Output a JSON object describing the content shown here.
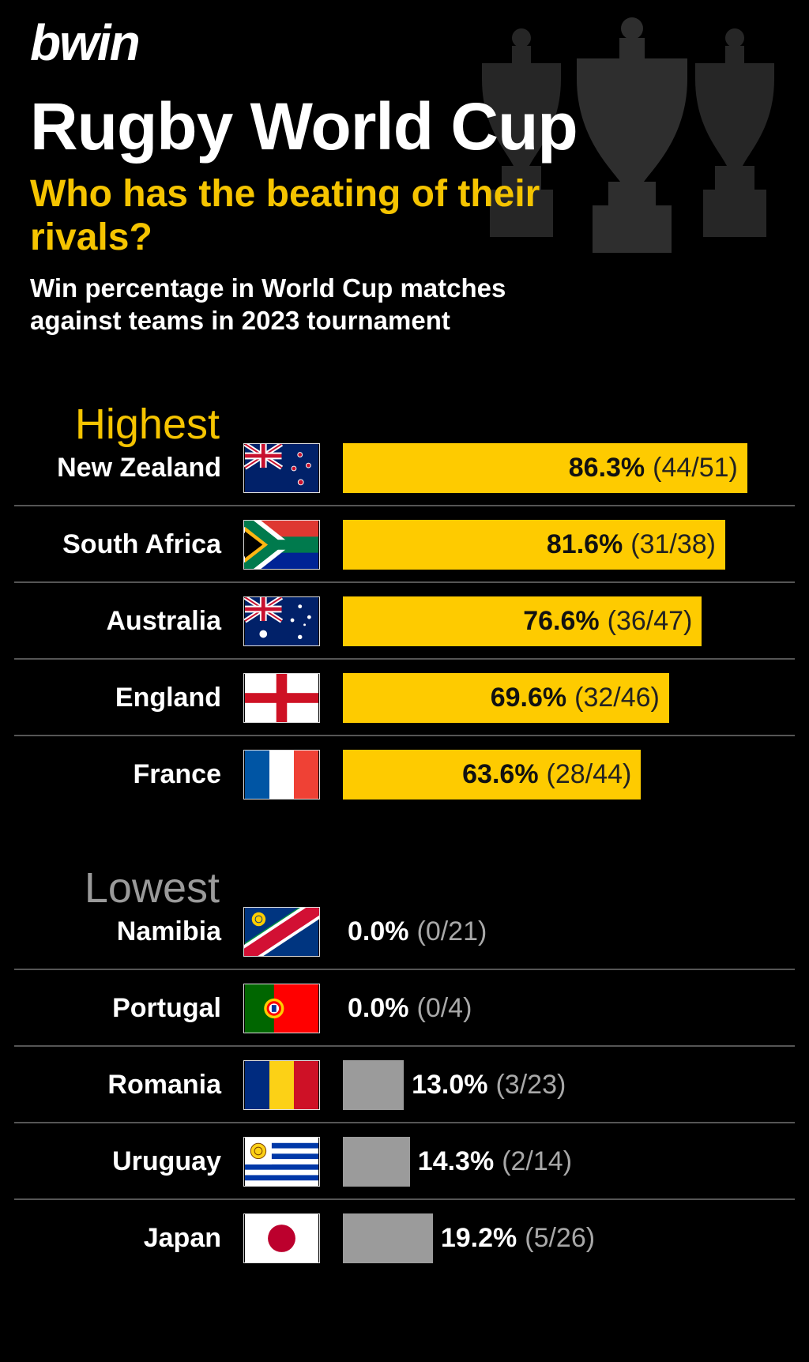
{
  "brand": "bwin",
  "title": "Rugby World Cup",
  "subtitle": "Who has the beating of their rivals?",
  "description": "Win percentage in World Cup matches against teams in 2023 tournament",
  "colors": {
    "highlight": "#fecb00",
    "low_bar": "#9b9b9b",
    "background": "#000000"
  },
  "chart_data": {
    "type": "bar",
    "orientation": "horizontal",
    "xlim": [
      0,
      100
    ],
    "groups": [
      {
        "label": "Highest",
        "items": [
          {
            "team": "New Zealand",
            "flag": "new-zealand-flag-icon",
            "value": 86.3,
            "pct": "86.3%",
            "record": "(44/51)"
          },
          {
            "team": "South Africa",
            "flag": "south-africa-flag-icon",
            "value": 81.6,
            "pct": "81.6%",
            "record": "(31/38)"
          },
          {
            "team": "Australia",
            "flag": "australia-flag-icon",
            "value": 76.6,
            "pct": "76.6%",
            "record": "(36/47)"
          },
          {
            "team": "England",
            "flag": "england-flag-icon",
            "value": 69.6,
            "pct": "69.6%",
            "record": "(32/46)"
          },
          {
            "team": "France",
            "flag": "france-flag-icon",
            "value": 63.6,
            "pct": "63.6%",
            "record": "(28/44)"
          }
        ]
      },
      {
        "label": "Lowest",
        "items": [
          {
            "team": "Namibia",
            "flag": "namibia-flag-icon",
            "value": 0.0,
            "pct": "0.0%",
            "record": "(0/21)"
          },
          {
            "team": "Portugal",
            "flag": "portugal-flag-icon",
            "value": 0.0,
            "pct": "0.0%",
            "record": "(0/4)"
          },
          {
            "team": "Romania",
            "flag": "romania-flag-icon",
            "value": 13.0,
            "pct": "13.0%",
            "record": "(3/23)"
          },
          {
            "team": "Uruguay",
            "flag": "uruguay-flag-icon",
            "value": 14.3,
            "pct": "14.3%",
            "record": "(2/14)"
          },
          {
            "team": "Japan",
            "flag": "japan-flag-icon",
            "value": 19.2,
            "pct": "19.2%",
            "record": "(5/26)"
          }
        ]
      }
    ]
  }
}
